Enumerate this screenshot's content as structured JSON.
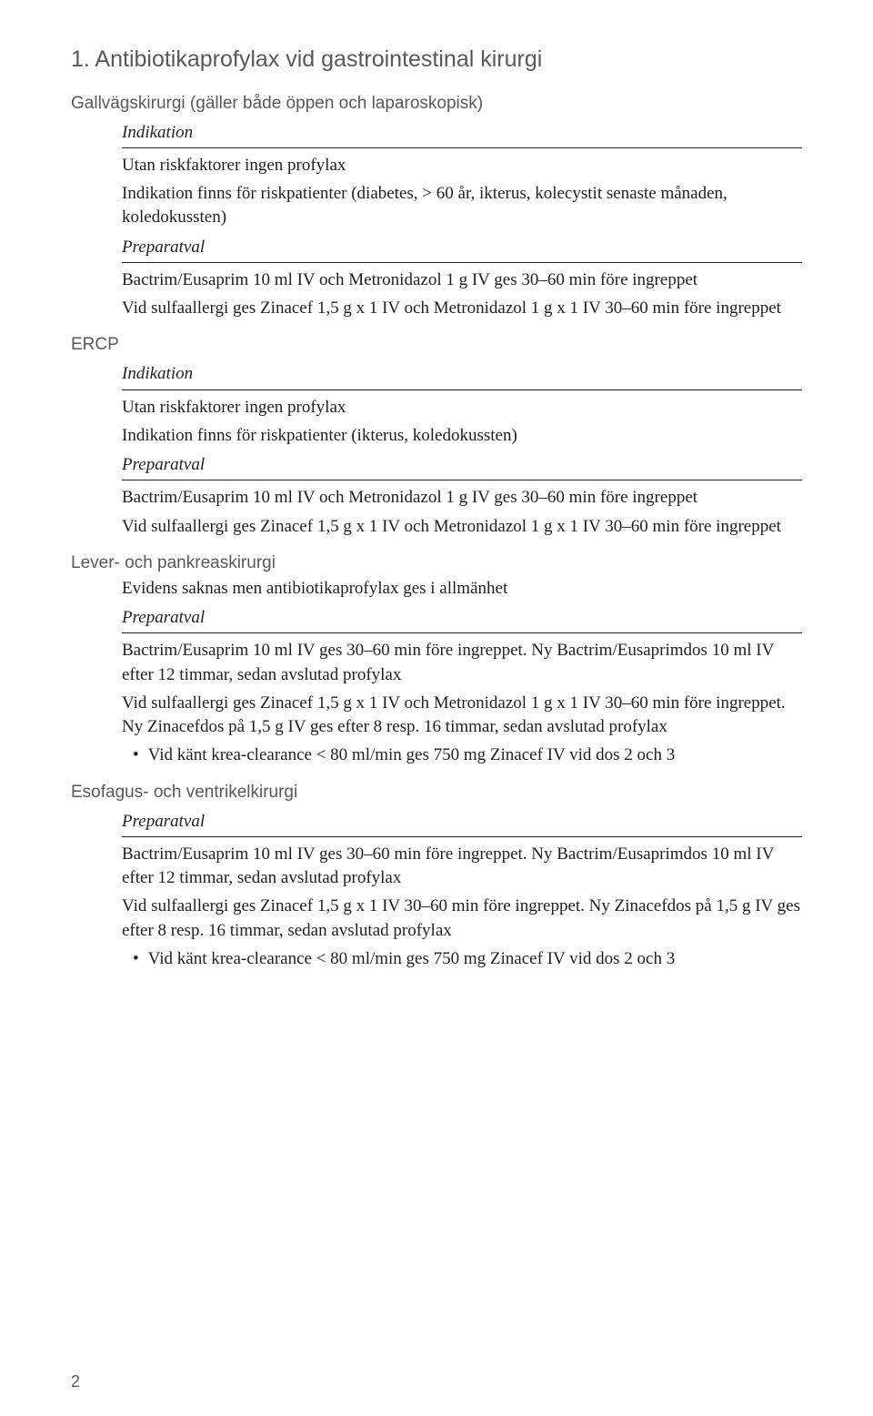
{
  "title": "1.  Antibiotikaprofylax vid gastrointestinal kirurgi",
  "pageNumber": "2",
  "sections": [
    {
      "heading": "Gallvägskirurgi (gäller både öppen och laparoskopisk)",
      "indikation_label": "Indikation",
      "indikation_lines": [
        "Utan riskfaktorer ingen profylax",
        "Indikation finns för riskpatienter (diabetes, > 60 år, ikterus, kolecystit senaste månaden, koledokussten)"
      ],
      "preparatval_label": "Preparatval",
      "preparatval_lines": [
        "Bactrim/Eusaprim 10 ml IV och Metronidazol 1 g IV ges 30–60 min före ingreppet",
        "Vid sulfaallergi ges Zinacef 1,5 g x 1 IV och Metronidazol 1 g x 1 IV 30–60 min före ingreppet"
      ]
    },
    {
      "heading": "ERCP",
      "heading_unindented": true,
      "indikation_label": "Indikation",
      "indikation_lines": [
        "Utan riskfaktorer ingen profylax",
        "Indikation finns för riskpatienter (ikterus, koledokussten)"
      ],
      "preparatval_label": "Preparatval",
      "preparatval_lines": [
        "Bactrim/Eusaprim 10 ml IV och Metronidazol 1 g IV ges 30–60 min före ingreppet",
        "Vid sulfaallergi ges Zinacef 1,5 g x 1 IV och Metronidazol 1 g x 1 IV 30–60 min före ingreppet"
      ]
    },
    {
      "heading": "Lever- och pankreaskirurgi",
      "intro_lines": [
        "Evidens saknas men antibiotikaprofylax ges i allmänhet"
      ],
      "preparatval_label": "Preparatval",
      "preparatval_lines": [
        "Bactrim/Eusaprim 10 ml IV ges 30–60 min före ingreppet. Ny Bactrim/Eusaprimdos 10 ml IV efter 12 timmar, sedan avslutad profylax",
        "Vid sulfaallergi ges Zinacef 1,5 g x 1 IV och Metronidazol 1 g x 1 IV 30–60 min före ingreppet. Ny Zinacefdos på 1,5 g IV ges efter 8 resp. 16 timmar, sedan avslutad profylax"
      ],
      "bullets": [
        "Vid känt krea-clearance < 80 ml/min ges 750 mg Zinacef IV vid dos 2 och 3"
      ]
    },
    {
      "heading": "Esofagus- och ventrikelkirurgi",
      "preparatval_label": "Preparatval",
      "preparatval_lines": [
        "Bactrim/Eusaprim 10 ml IV ges 30–60 min före ingreppet. Ny Bactrim/Eusaprimdos 10 ml IV efter 12 timmar, sedan avslutad profylax",
        "Vid sulfaallergi ges Zinacef 1,5 g x 1 IV 30–60 min före ingreppet. Ny Zinacefdos på 1,5 g IV ges efter 8 resp. 16 timmar, sedan avslutad profylax"
      ],
      "bullets": [
        "Vid känt krea-clearance < 80 ml/min ges 750 mg Zinacef IV vid dos 2 och 3"
      ]
    }
  ]
}
